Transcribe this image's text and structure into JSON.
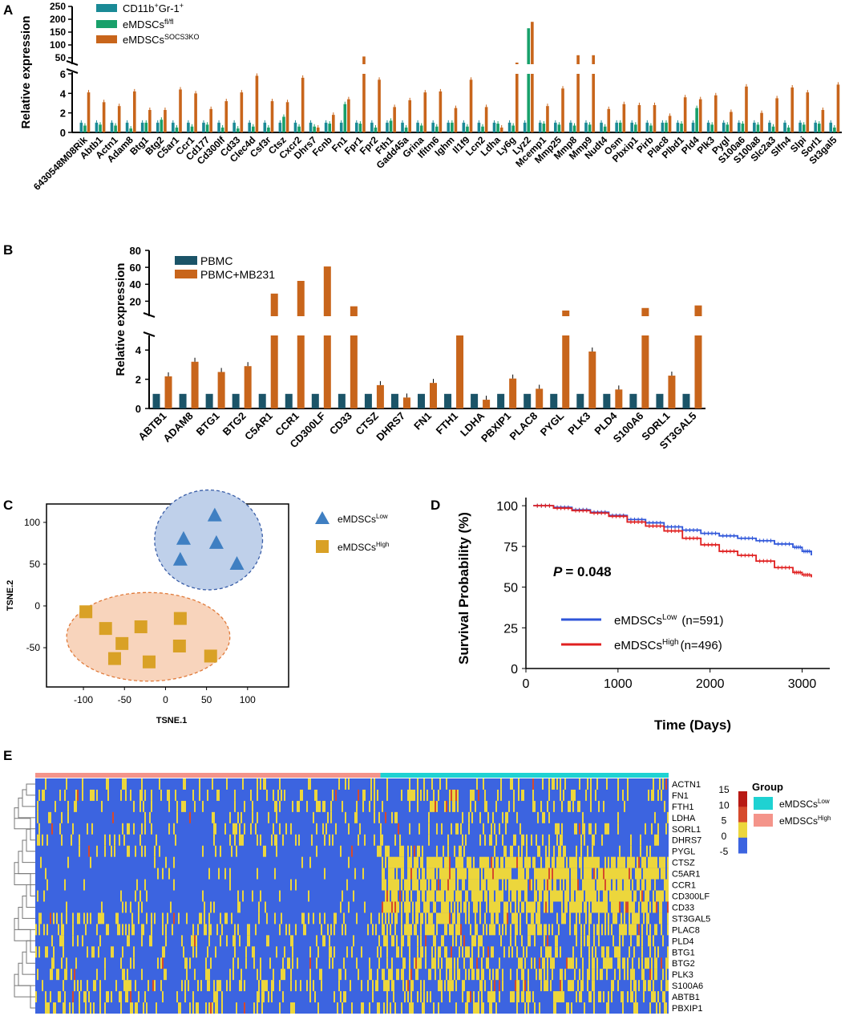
{
  "colors": {
    "teal": "#1a8a96",
    "green": "#18a06a",
    "orange": "#c8651b",
    "navy": "#1b5468",
    "tsne_low": "#3f7fc2",
    "tsne_high": "#d9a126",
    "ell_low": "#bfd0ea",
    "ell_high": "#f8d4bc",
    "ell_low_stroke": "#3a5ea8",
    "ell_high_stroke": "#e07a3a",
    "km_low": "#2f56d9",
    "km_high": "#e02020",
    "hm_low_bar": "#1fd2d2",
    "hm_high_bar": "#f4948a",
    "hm_blue": "#3c64e0",
    "hm_yellow": "#ecd63c",
    "hm_red": "#d64a2c",
    "hm_darkred": "#b81a14"
  },
  "panels": {
    "A": {
      "label": "A",
      "ylabel": "Relative expression",
      "legend": [
        {
          "base": "CD11b",
          "sup1": "+",
          "mid": "Gr-1",
          "sup2": "+"
        },
        {
          "base": "eMDSCs",
          "sup1": "fl/fl",
          "mid": "",
          "sup2": ""
        },
        {
          "base": "eMDSCs",
          "sup1": "SOCS3KO",
          "mid": "",
          "sup2": ""
        }
      ],
      "upper_ticks": [
        "250",
        "200",
        "150",
        "100",
        "50"
      ],
      "lower_ticks": [
        "6",
        "4",
        "2",
        "0"
      ]
    },
    "B": {
      "label": "B",
      "ylabel": "Relative expression",
      "legend": [
        "PBMC",
        "PBMC+MB231"
      ],
      "upper_ticks": [
        "80",
        "60",
        "40",
        "20"
      ],
      "lower_ticks": [
        "4",
        "2",
        "0"
      ]
    },
    "C": {
      "label": "C",
      "xlabel": "TSNE.1",
      "ylabel": "TSNE.2",
      "xticks": [
        "-100",
        "-50",
        "0",
        "50",
        "100"
      ],
      "yticks": [
        "100",
        "50",
        "0",
        "-50"
      ],
      "legend": [
        {
          "base": "eMDSCs",
          "sup": "Low"
        },
        {
          "base": "eMDSCs",
          "sup": "High"
        }
      ]
    },
    "D": {
      "label": "D",
      "xlabel": "Time (Days)",
      "ylabel": "Survival Probability (%)",
      "xticks": [
        "0",
        "1000",
        "2000",
        "3000"
      ],
      "yticks": [
        "100",
        "75",
        "50",
        "25",
        "0"
      ],
      "p_label": "P",
      "p_value": "= 0.048",
      "legend": [
        {
          "base": "eMDSCs",
          "sup": "Low",
          "n": "(n=591)"
        },
        {
          "base": "eMDSCs",
          "sup": "High",
          "n": "(n=496)"
        }
      ]
    },
    "E": {
      "label": "E",
      "legend_title": "Group",
      "scale_ticks": [
        "15",
        "10",
        "5",
        "0",
        "-5"
      ],
      "legend": [
        {
          "base": "eMDSCs",
          "sup": "Low"
        },
        {
          "base": "eMDSCs",
          "sup": "High"
        }
      ]
    }
  },
  "chart_data": [
    {
      "type": "bar",
      "title": "A",
      "ylabel": "Relative expression",
      "broken_axis": {
        "lower": [
          0,
          6
        ],
        "upper": [
          50,
          250
        ]
      },
      "categories": [
        "6430548M08Rik",
        "Abtb1",
        "Actn1",
        "Adam8",
        "Btg1",
        "Btg2",
        "C5ar1",
        "Ccr1",
        "Cd177",
        "Cd300lf",
        "Cd33",
        "Clec4d",
        "Csf3r",
        "Ctsz",
        "Cxcr2",
        "Dhrs7",
        "Fcnb",
        "Fn1",
        "Fpr1",
        "Fpr2",
        "Fth1",
        "Gadd45a",
        "Grina",
        "Ifitm6",
        "Ighm",
        "Il1f9",
        "Lcn2",
        "Ldha",
        "Ly6g",
        "Lyz2",
        "Mcemp1",
        "Mmp25",
        "Mmp8",
        "Mmp9",
        "Nudt4",
        "Osm",
        "Pbxip1",
        "Pirb",
        "Plac8",
        "Plbd1",
        "Pld4",
        "Plk3",
        "Pygl",
        "S100a6",
        "S100a8",
        "Slc2a3",
        "Slfn4",
        "Slpi",
        "Sorl1",
        "St3gal5"
      ],
      "series": [
        {
          "name": "CD11b+Gr-1+",
          "values": [
            1.0,
            1.0,
            1.0,
            1.0,
            1.0,
            1.0,
            1.0,
            1.0,
            1.0,
            1.0,
            1.0,
            1.0,
            1.0,
            1.0,
            1.0,
            1.0,
            1.0,
            1.0,
            1.0,
            1.0,
            1.0,
            1.0,
            1.0,
            1.0,
            1.0,
            1.0,
            1.0,
            1.0,
            1.0,
            1.0,
            1.0,
            1.0,
            1.0,
            1.0,
            1.0,
            1.0,
            1.0,
            1.0,
            1.0,
            1.0,
            1.0,
            1.0,
            1.0,
            1.0,
            1.0,
            1.0,
            1.0,
            1.0,
            1.0,
            1.0
          ]
        },
        {
          "name": "eMDSCsfl/fl",
          "values": [
            0.7,
            0.8,
            0.7,
            0.4,
            1.0,
            1.3,
            0.5,
            0.6,
            0.8,
            0.5,
            0.4,
            0.6,
            0.5,
            1.6,
            0.6,
            0.6,
            0.9,
            2.9,
            0.9,
            0.5,
            1.2,
            0.5,
            0.7,
            0.6,
            1.0,
            0.6,
            0.6,
            0.9,
            0.7,
            165,
            0.9,
            0.8,
            0.7,
            0.8,
            0.6,
            1.0,
            0.8,
            0.7,
            1.0,
            0.9,
            2.5,
            0.8,
            0.8,
            0.9,
            0.8,
            0.6,
            0.5,
            0.8,
            0.9,
            0.5
          ]
        },
        {
          "name": "eMDSCsSOCS3KO",
          "values": [
            4.1,
            3.1,
            2.7,
            4.2,
            2.3,
            2.3,
            4.4,
            4.0,
            2.4,
            3.2,
            4.1,
            5.8,
            3.2,
            3.1,
            5.6,
            0.5,
            1.8,
            3.4,
            55,
            5.4,
            2.6,
            3.3,
            4.1,
            4.2,
            2.5,
            5.4,
            2.6,
            0.5,
            7.5,
            190,
            2.7,
            4.5,
            60,
            60,
            2.4,
            2.9,
            2.8,
            2.8,
            1.7,
            3.6,
            3.4,
            3.8,
            2.1,
            4.7,
            2.0,
            3.5,
            4.6,
            4.1,
            2.3,
            4.9
          ]
        }
      ]
    },
    {
      "type": "bar",
      "title": "B",
      "ylabel": "Relative expression",
      "broken_axis": {
        "lower": [
          0,
          5
        ],
        "upper": [
          8,
          80
        ]
      },
      "categories": [
        "ABTB1",
        "ADAM8",
        "BTG1",
        "BTG2",
        "C5AR1",
        "CCR1",
        "CD300LF",
        "CD33",
        "CTSZ",
        "DHRS7",
        "FN1",
        "FTH1",
        "LDHA",
        "PBXIP1",
        "PLAC8",
        "PYGL",
        "PLK3",
        "PLD4",
        "S100A6",
        "SORL1",
        "ST3GAL5"
      ],
      "series": [
        {
          "name": "PBMC",
          "values": [
            1,
            1,
            1,
            1,
            1,
            1,
            1,
            1,
            1,
            1,
            1,
            1,
            1,
            1,
            1,
            1,
            1,
            1,
            1,
            1,
            1
          ]
        },
        {
          "name": "PBMC+MB231",
          "values": [
            2.2,
            3.2,
            2.5,
            2.9,
            29,
            44,
            61,
            14,
            1.6,
            0.75,
            1.75,
            6,
            0.6,
            2.05,
            1.35,
            9,
            3.9,
            1.3,
            12,
            2.25,
            15
          ]
        }
      ]
    },
    {
      "type": "scatter",
      "title": "C",
      "xlabel": "TSNE.1",
      "ylabel": "TSNE.2",
      "xlim": [
        -145,
        150
      ],
      "ylim": [
        -97,
        122
      ],
      "series": [
        {
          "name": "eMDSCsLow",
          "marker": "triangle",
          "points": [
            [
              22,
              80
            ],
            [
              60,
              108
            ],
            [
              62,
              75
            ],
            [
              18,
              55
            ],
            [
              87,
              50
            ]
          ]
        },
        {
          "name": "eMDSCsHigh",
          "marker": "square",
          "points": [
            [
              -97,
              -7
            ],
            [
              -73,
              -27
            ],
            [
              -53,
              -45
            ],
            [
              -30,
              -25
            ],
            [
              18,
              -15
            ],
            [
              -62,
              -63
            ],
            [
              -20,
              -67
            ],
            [
              17,
              -48
            ],
            [
              55,
              -60
            ]
          ]
        }
      ]
    },
    {
      "type": "line",
      "title": "D",
      "xlabel": "Time (Days)",
      "ylabel": "Survival Probability (%)",
      "xlim": [
        0,
        3300
      ],
      "ylim": [
        0,
        105
      ],
      "series": [
        {
          "name": "eMDSCsLow (n=591)",
          "x": [
            80,
            300,
            500,
            700,
            900,
            1100,
            1300,
            1500,
            1700,
            1900,
            2100,
            2300,
            2500,
            2700,
            2900,
            3000,
            3100
          ],
          "y": [
            100,
            99,
            97.5,
            96,
            94,
            91.5,
            89.5,
            87,
            85,
            83,
            81.5,
            80,
            78.5,
            76.5,
            74.5,
            72,
            69.5
          ]
        },
        {
          "name": "eMDSCsHigh (n=496)",
          "x": [
            80,
            300,
            500,
            700,
            900,
            1100,
            1300,
            1500,
            1700,
            1900,
            2100,
            2300,
            2500,
            2700,
            2900,
            3000,
            3100
          ],
          "y": [
            100,
            98.5,
            97,
            95.5,
            93.5,
            90,
            87.5,
            84.5,
            80,
            76,
            72,
            69.5,
            66,
            62,
            59,
            57.5,
            56
          ]
        }
      ]
    },
    {
      "type": "heatmap",
      "title": "E",
      "rows": [
        "ACTN1",
        "FN1",
        "FTH1",
        "LDHA",
        "SORL1",
        "DHRS7",
        "PYGL",
        "CTSZ",
        "C5AR1",
        "CCR1",
        "CD300LF",
        "CD33",
        "ST3GAL5",
        "PLAC8",
        "PLD4",
        "BTG1",
        "BTG2",
        "PLK3",
        "S100A6",
        "ABTB1",
        "PBXIP1"
      ],
      "groups": [
        {
          "name": "eMDSCsHigh",
          "fraction": 0.545
        },
        {
          "name": "eMDSCsLow",
          "fraction": 0.455
        }
      ],
      "scale": [
        -5,
        15
      ],
      "high_expression_in_low_group": [
        0.18,
        0.22,
        0.18,
        0.12,
        0.18,
        0.2,
        0.2,
        0.78,
        0.78,
        0.75,
        0.72,
        0.75,
        0.45,
        0.45,
        0.4,
        0.4,
        0.35,
        0.45,
        0.4,
        0.35,
        0.25
      ],
      "high_expression_in_high_group": [
        0.18,
        0.25,
        0.18,
        0.12,
        0.15,
        0.2,
        0.12,
        0.05,
        0.04,
        0.04,
        0.05,
        0.06,
        0.2,
        0.2,
        0.18,
        0.22,
        0.2,
        0.2,
        0.22,
        0.2,
        0.25
      ]
    }
  ]
}
